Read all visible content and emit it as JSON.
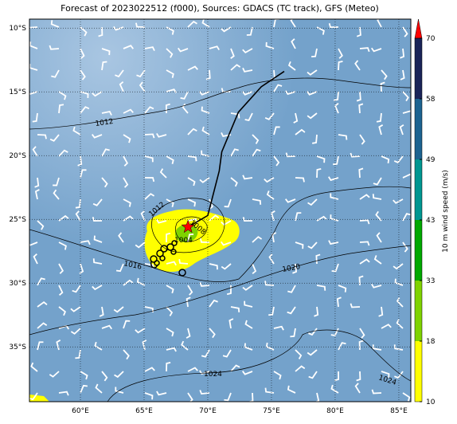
{
  "title": "Forecast of 2023022512 (f000), Sources: GDACS (TC track), GFS (Meteo)",
  "map": {
    "lon_lim": [
      56,
      85.94
    ],
    "lat_lim": [
      -9.3,
      -39.3
    ],
    "lon_ticks": [
      {
        "value": 60,
        "label": "60°E"
      },
      {
        "value": 65,
        "label": "65°E"
      },
      {
        "value": 70,
        "label": "70°E"
      },
      {
        "value": 75,
        "label": "75°E"
      },
      {
        "value": 80,
        "label": "80°E"
      },
      {
        "value": 85,
        "label": "85°E"
      }
    ],
    "lat_ticks": [
      {
        "value": -10,
        "label": "10°S"
      },
      {
        "value": -15,
        "label": "15°S"
      },
      {
        "value": -20,
        "label": "20°S"
      },
      {
        "value": -25,
        "label": "25°S"
      },
      {
        "value": -30,
        "label": "30°S"
      },
      {
        "value": -35,
        "label": "35°S"
      }
    ],
    "track": [
      [
        68.45,
        -25.6
      ],
      [
        70,
        -24.7
      ],
      [
        70.9,
        -21.2
      ],
      [
        71.1,
        -19.7
      ],
      [
        72.4,
        -16.6
      ],
      [
        74.2,
        -14.6
      ],
      [
        76,
        -13.4
      ]
    ],
    "isobar_labels": [
      "1012",
      "1012",
      "1008",
      "1004",
      "1016",
      "1020",
      "1024",
      "1024"
    ]
  },
  "colorbar": {
    "label": "10 m wind speed (m/s)",
    "ticks": [
      10,
      18,
      33,
      43,
      49,
      58,
      70
    ],
    "colors": [
      "#ffff00",
      "#7fd200",
      "#00a800",
      "#009690",
      "#1d6390",
      "#1a2458"
    ],
    "extend_color": "#ff0000"
  }
}
